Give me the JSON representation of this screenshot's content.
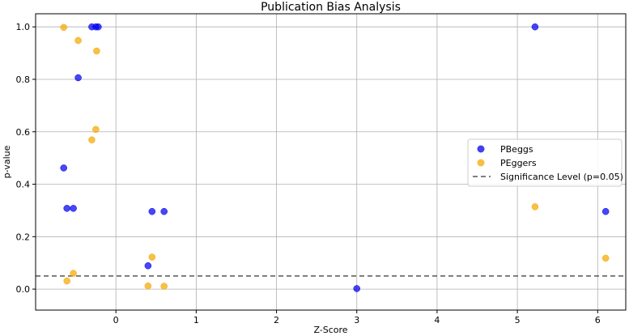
{
  "chart_data": {
    "type": "scatter",
    "title": "Publication Bias Analysis",
    "xlabel": "Z-Score",
    "ylabel": "p-value",
    "xlim": [
      -1.0,
      6.35
    ],
    "ylim": [
      -0.08,
      1.05
    ],
    "xticks": [
      "0",
      "1",
      "2",
      "3",
      "4",
      "5",
      "6"
    ],
    "yticks": [
      "0.0",
      "0.2",
      "0.4",
      "0.6",
      "0.8",
      "1.0"
    ],
    "grid": true,
    "legend_position": "center-right",
    "series": [
      {
        "name": "PBeggs",
        "color": "#0000ee",
        "points": [
          {
            "x": -0.3,
            "y": 1.0
          },
          {
            "x": -0.25,
            "y": 1.0
          },
          {
            "x": -0.22,
            "y": 1.0
          },
          {
            "x": -0.47,
            "y": 0.806
          },
          {
            "x": -0.65,
            "y": 0.462
          },
          {
            "x": -0.61,
            "y": 0.308
          },
          {
            "x": -0.53,
            "y": 0.308
          },
          {
            "x": 0.45,
            "y": 0.296
          },
          {
            "x": 0.6,
            "y": 0.296
          },
          {
            "x": 0.4,
            "y": 0.089
          },
          {
            "x": 3.0,
            "y": 0.002
          },
          {
            "x": 5.22,
            "y": 1.0
          },
          {
            "x": 6.1,
            "y": 0.296
          }
        ]
      },
      {
        "name": "PEggers",
        "color": "#f5a800",
        "points": [
          {
            "x": -0.65,
            "y": 0.998
          },
          {
            "x": -0.47,
            "y": 0.948
          },
          {
            "x": -0.24,
            "y": 0.908
          },
          {
            "x": -0.25,
            "y": 0.609
          },
          {
            "x": -0.3,
            "y": 0.569
          },
          {
            "x": -0.61,
            "y": 0.031
          },
          {
            "x": -0.53,
            "y": 0.06
          },
          {
            "x": 0.45,
            "y": 0.122
          },
          {
            "x": 0.4,
            "y": 0.012
          },
          {
            "x": 0.6,
            "y": 0.011
          },
          {
            "x": 5.22,
            "y": 0.314
          },
          {
            "x": 6.1,
            "y": 0.118
          }
        ]
      }
    ],
    "reference_line": {
      "name": "Significance Level (p=0.05)",
      "y": 0.05,
      "color": "#555555",
      "style": "dashed"
    }
  }
}
